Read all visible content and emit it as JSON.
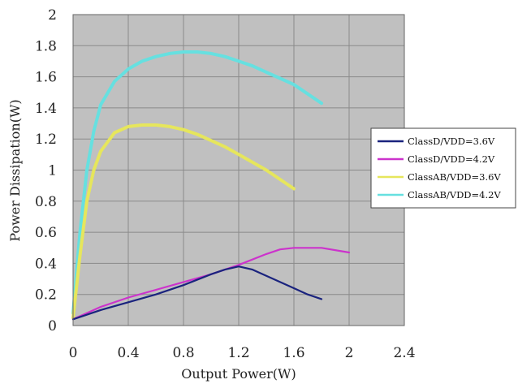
{
  "chart_data": {
    "type": "line",
    "xlabel": "Output Power(W)",
    "ylabel": "Power Dissipation(W)",
    "xlim": [
      0,
      2.4
    ],
    "ylim": [
      0,
      2
    ],
    "x_ticks": [
      "0",
      "0.4",
      "0.8",
      "1.2",
      "1.6",
      "2",
      "2.4"
    ],
    "y_ticks": [
      "0",
      "0.2",
      "0.4",
      "0.6",
      "0.8",
      "1",
      "1.2",
      "1.4",
      "1.6",
      "1.8",
      "2"
    ],
    "grid": true,
    "plot_background": "#c0c0c0",
    "legend_position": "right",
    "series": [
      {
        "name": "ClassD/VDD=3.6V",
        "color": "#1a237e",
        "points": [
          [
            0,
            0.04
          ],
          [
            0.2,
            0.1
          ],
          [
            0.4,
            0.15
          ],
          [
            0.6,
            0.2
          ],
          [
            0.8,
            0.26
          ],
          [
            1.0,
            0.33
          ],
          [
            1.1,
            0.36
          ],
          [
            1.2,
            0.38
          ],
          [
            1.3,
            0.36
          ],
          [
            1.4,
            0.32
          ],
          [
            1.5,
            0.28
          ],
          [
            1.6,
            0.24
          ],
          [
            1.7,
            0.2
          ],
          [
            1.8,
            0.17
          ]
        ]
      },
      {
        "name": "ClassD/VDD=4.2V",
        "color": "#cc33cc",
        "points": [
          [
            0,
            0.04
          ],
          [
            0.2,
            0.12
          ],
          [
            0.4,
            0.18
          ],
          [
            0.6,
            0.23
          ],
          [
            0.8,
            0.28
          ],
          [
            1.0,
            0.33
          ],
          [
            1.2,
            0.39
          ],
          [
            1.4,
            0.46
          ],
          [
            1.5,
            0.49
          ],
          [
            1.6,
            0.5
          ],
          [
            1.8,
            0.5
          ],
          [
            2.0,
            0.47
          ]
        ]
      },
      {
        "name": "ClassAB/VDD=3.6V",
        "color": "#e6e65c",
        "points": [
          [
            0,
            0.05
          ],
          [
            0.05,
            0.45
          ],
          [
            0.1,
            0.8
          ],
          [
            0.15,
            1.0
          ],
          [
            0.2,
            1.12
          ],
          [
            0.3,
            1.24
          ],
          [
            0.4,
            1.28
          ],
          [
            0.5,
            1.29
          ],
          [
            0.6,
            1.29
          ],
          [
            0.7,
            1.28
          ],
          [
            0.8,
            1.26
          ],
          [
            0.9,
            1.23
          ],
          [
            1.0,
            1.19
          ],
          [
            1.1,
            1.15
          ],
          [
            1.2,
            1.1
          ],
          [
            1.3,
            1.05
          ],
          [
            1.4,
            1.0
          ],
          [
            1.5,
            0.94
          ],
          [
            1.6,
            0.88
          ]
        ]
      },
      {
        "name": "ClassAB/VDD=4.2V",
        "color": "#66e0e0",
        "points": [
          [
            0,
            0.08
          ],
          [
            0.05,
            0.6
          ],
          [
            0.1,
            1.0
          ],
          [
            0.15,
            1.25
          ],
          [
            0.2,
            1.42
          ],
          [
            0.3,
            1.57
          ],
          [
            0.4,
            1.65
          ],
          [
            0.5,
            1.7
          ],
          [
            0.6,
            1.73
          ],
          [
            0.7,
            1.75
          ],
          [
            0.8,
            1.76
          ],
          [
            0.9,
            1.76
          ],
          [
            1.0,
            1.75
          ],
          [
            1.1,
            1.73
          ],
          [
            1.2,
            1.7
          ],
          [
            1.3,
            1.67
          ],
          [
            1.4,
            1.63
          ],
          [
            1.5,
            1.59
          ],
          [
            1.6,
            1.55
          ],
          [
            1.7,
            1.49
          ],
          [
            1.8,
            1.43
          ]
        ]
      }
    ]
  }
}
